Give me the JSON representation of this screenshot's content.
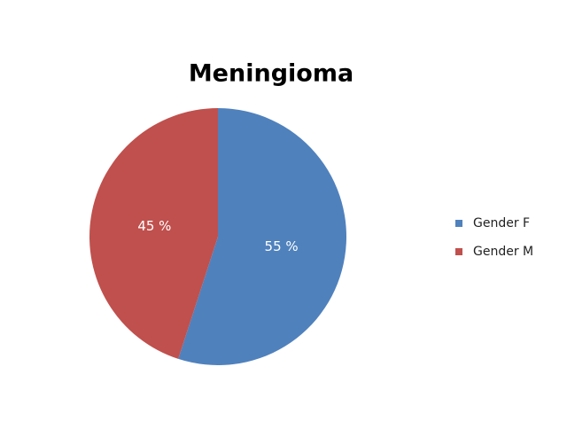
{
  "chart_data": {
    "type": "pie",
    "title": "Meningioma",
    "categories": [
      "Gender F",
      "Gender M"
    ],
    "values": [
      55,
      45
    ],
    "value_labels": [
      "55 %",
      "45 %"
    ],
    "colors": [
      "#4f81bd",
      "#c0504d"
    ],
    "legend": "right"
  }
}
